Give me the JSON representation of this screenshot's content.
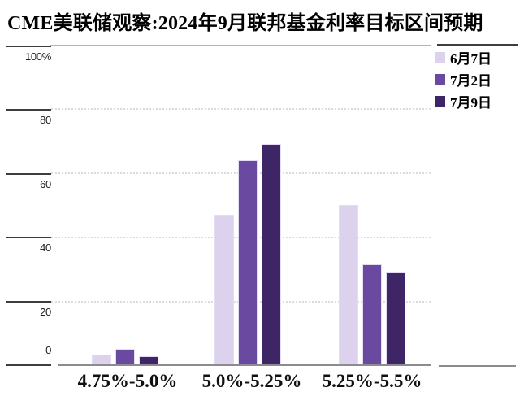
{
  "chart_data": {
    "type": "bar",
    "title": "CME美联储观察:2024年9月联邦基金利率目标区间预期",
    "categories": [
      "4.75%-5.0%",
      "5.0%-5.25%",
      "5.25%-5.5%"
    ],
    "series": [
      {
        "name": "6月7日",
        "color": "#ddd2ed",
        "values": [
          3.3,
          47.0,
          50.0
        ]
      },
      {
        "name": "7月2日",
        "color": "#6a4aa0",
        "values": [
          5.0,
          64.0,
          31.5
        ]
      },
      {
        "name": "7月9日",
        "color": "#3e2566",
        "values": [
          2.7,
          69.0,
          29.0
        ]
      }
    ],
    "xlabel": "",
    "ylabel": "",
    "y_ticks": [
      "100%",
      "80",
      "60",
      "40",
      "20",
      "0"
    ],
    "ylim": [
      0,
      100
    ],
    "grid": "horizontal dotted lines at 20, 40, 60, 80",
    "legend_position": "top-right",
    "axis_colors": {
      "baseline": "#8e8a92",
      "tick": "#3d3d3d",
      "gridline": "#ddd8e2"
    }
  }
}
